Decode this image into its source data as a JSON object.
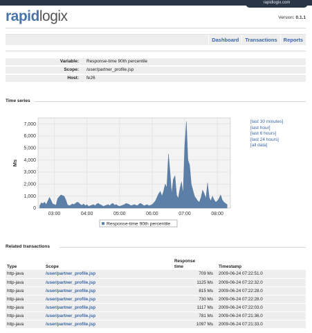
{
  "header": {
    "domain_link": "rapidlogix.com",
    "logo_part1": "rapid",
    "logo_part2": "logix",
    "version_label": "Version:",
    "version_value": "0.1.1"
  },
  "nav": {
    "items": [
      "Dashboard",
      "Transactions",
      "Reports"
    ]
  },
  "info": [
    {
      "label": "Variable:",
      "value": "Response-time 90th percentile"
    },
    {
      "label": "Scope:",
      "value": "/user/partner_profile.jsp"
    },
    {
      "label": "Host:",
      "value": "fe26"
    }
  ],
  "time_series": {
    "title": "Time series",
    "ranges": [
      "[last 30 minutes]",
      "[last hour]",
      "[last 6 hours]",
      "[last 24 hours]",
      "[all data]"
    ]
  },
  "chart_data": {
    "type": "area",
    "title": "",
    "xlabel": "",
    "ylabel": "Ms",
    "ylim": [
      0,
      7500
    ],
    "yticks": [
      0,
      1000,
      2000,
      3000,
      4000,
      5000,
      6000,
      7000
    ],
    "ytick_labels": [
      "0",
      "1,000",
      "2,000",
      "3,000",
      "4,000",
      "5,000",
      "6,000",
      "7,000"
    ],
    "xlim": [
      2.5,
      8.4
    ],
    "xticks": [
      3,
      4,
      5,
      6,
      7,
      8
    ],
    "xtick_labels": [
      "03:00",
      "04:00",
      "05:00",
      "06:00",
      "07:00",
      "08:00"
    ],
    "grid": true,
    "legend": "bottom",
    "series_color": "#5b7fa6",
    "series": [
      {
        "name": "Response-time 90th percentile",
        "x": [
          2.55,
          2.6,
          2.65,
          2.7,
          2.75,
          2.8,
          2.85,
          2.9,
          2.95,
          3.0,
          3.05,
          3.1,
          3.15,
          3.2,
          3.25,
          3.3,
          3.35,
          3.4,
          3.45,
          3.5,
          3.55,
          3.6,
          3.65,
          3.7,
          3.75,
          3.8,
          3.85,
          3.9,
          3.95,
          4.0,
          4.05,
          4.1,
          4.15,
          4.2,
          4.25,
          4.3,
          4.35,
          4.4,
          4.45,
          4.5,
          4.55,
          4.6,
          4.65,
          4.7,
          4.75,
          4.8,
          4.85,
          4.9,
          4.95,
          5.0,
          5.05,
          5.1,
          5.15,
          5.2,
          5.25,
          5.3,
          5.35,
          5.4,
          5.45,
          5.5,
          5.55,
          5.6,
          5.65,
          5.7,
          5.75,
          5.8,
          5.85,
          5.9,
          5.95,
          6.0,
          6.05,
          6.1,
          6.15,
          6.2,
          6.25,
          6.3,
          6.35,
          6.4,
          6.45,
          6.5,
          6.55,
          6.6,
          6.65,
          6.7,
          6.75,
          6.8,
          6.85,
          6.9,
          6.95,
          7.0,
          7.05,
          7.1,
          7.15,
          7.2,
          7.25,
          7.3,
          7.35,
          7.4,
          7.45,
          7.5,
          7.55,
          7.6,
          7.65,
          7.7,
          7.75,
          7.8,
          7.85,
          7.9,
          7.95,
          8.0,
          8.05,
          8.1,
          8.15,
          8.2,
          8.25,
          8.3
        ],
        "values": [
          200,
          450,
          380,
          500,
          300,
          600,
          900,
          650,
          350,
          300,
          250,
          800,
          950,
          1100,
          1050,
          1000,
          700,
          300,
          200,
          250,
          350,
          300,
          400,
          500,
          450,
          300,
          250,
          350,
          200,
          300,
          150,
          200,
          250,
          300,
          200,
          350,
          400,
          300,
          250,
          150,
          200,
          250,
          300,
          200,
          350,
          400,
          250,
          300,
          200,
          150,
          200,
          250,
          300,
          400,
          350,
          300,
          200,
          250,
          300,
          250,
          200,
          350,
          400,
          300,
          200,
          250,
          300,
          200,
          250,
          300,
          450,
          600,
          900,
          1200,
          1400,
          1000,
          1400,
          2000,
          1700,
          4500,
          3000,
          1200,
          2400,
          2700,
          1100,
          800,
          1600,
          2200,
          1200,
          5200,
          7200,
          4000,
          3600,
          2000,
          1500,
          1000,
          800,
          600,
          500,
          900,
          1500,
          1200,
          800,
          2100,
          900,
          600,
          1000,
          700,
          500,
          600,
          800,
          1100,
          700,
          500,
          400,
          300
        ]
      }
    ]
  },
  "related": {
    "title": "Related transactions",
    "columns": {
      "type": "Type",
      "scope": "Scope",
      "response_line1": "Response",
      "response_line2": "time",
      "timestamp": "Timestamp"
    },
    "rows": [
      {
        "type": "http-java",
        "scope": "/user/partner_profile.jsp",
        "response": "709 Ms",
        "timestamp": "2009-06-24 07:22:51.0"
      },
      {
        "type": "http-java",
        "scope": "/user/partner_profile.jsp",
        "response": "1125 Ms",
        "timestamp": "2009-06-24 07:22:32.0"
      },
      {
        "type": "http-java",
        "scope": "/user/partner_profile.jsp",
        "response": "815 Ms",
        "timestamp": "2009-06-24 07:22:28.0"
      },
      {
        "type": "http-java",
        "scope": "/user/partner_profile.jsp",
        "response": "730 Ms",
        "timestamp": "2009-06-24 07:22:28.0"
      },
      {
        "type": "http-java",
        "scope": "/user/partner_profile.jsp",
        "response": "1117 Ms",
        "timestamp": "2009-06-24 07:22:03.0"
      },
      {
        "type": "http-java",
        "scope": "/user/partner_profile.jsp",
        "response": "781 Ms",
        "timestamp": "2009-06-24 07:21:36.0"
      },
      {
        "type": "http-java",
        "scope": "/user/partner_profile.jsp",
        "response": "1097 Ms",
        "timestamp": "2009-06-24 07:21:33.0"
      }
    ]
  }
}
